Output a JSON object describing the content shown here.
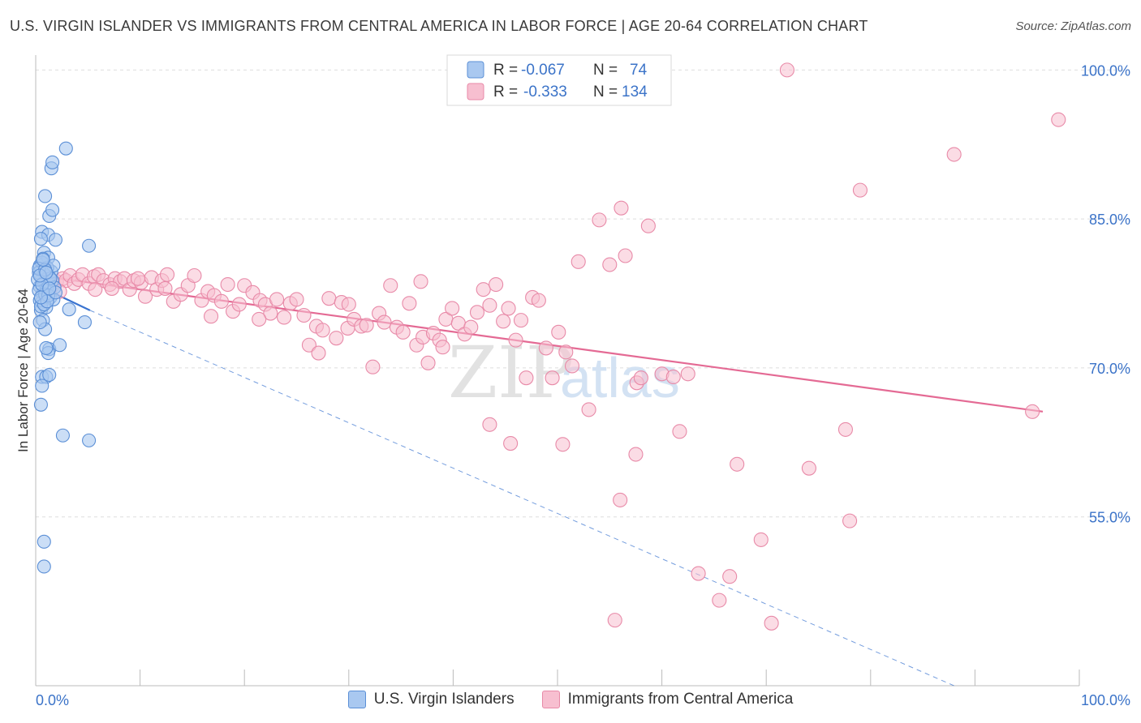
{
  "header": {
    "title": "U.S. VIRGIN ISLANDER VS IMMIGRANTS FROM CENTRAL AMERICA IN LABOR FORCE | AGE 20-64 CORRELATION CHART",
    "source": "Source: ZipAtlas.com"
  },
  "watermark": {
    "part1": "ZIP",
    "part2": "atlas"
  },
  "colors": {
    "blue_fill": "#a9c8f0",
    "blue_stroke": "#5b8fd6",
    "blue_line": "#3a74d0",
    "pink_fill": "#f7bfd0",
    "pink_stroke": "#e88aa8",
    "pink_line": "#e46a94",
    "accent_text": "#3b73c8",
    "grid": "#dedede"
  },
  "stats_legend": {
    "rows": [
      {
        "r_label": "R =",
        "r_value": "-0.067",
        "n_label": "N =",
        "n_value": "74"
      },
      {
        "r_label": "R =",
        "r_value": "-0.333",
        "n_label": "N =",
        "n_value": "134"
      }
    ]
  },
  "bottom_legend": {
    "blue_label": "U.S. Virgin Islanders",
    "pink_label": "Immigrants from Central America"
  },
  "chart_data": {
    "type": "scatter",
    "title": "U.S. VIRGIN ISLANDER VS IMMIGRANTS FROM CENTRAL AMERICA IN LABOR FORCE | AGE 20-64 CORRELATION CHART",
    "xlabel": "",
    "ylabel": "In Labor Force | Age 20-64",
    "xlim": [
      0,
      100
    ],
    "ylim": [
      38,
      101.5
    ],
    "x_tick_labels": {
      "left": "0.0%",
      "right": "100.0%"
    },
    "y_ticks": [
      {
        "value": 100,
        "label": "100.0%"
      },
      {
        "value": 85,
        "label": "85.0%"
      },
      {
        "value": 70,
        "label": "70.0%"
      },
      {
        "value": 55,
        "label": "55.0%"
      }
    ],
    "grid": true,
    "series": [
      {
        "name": "U.S. Virgin Islanders",
        "color": "blue",
        "trend": {
          "x0": 0.2,
          "y0": 78.3,
          "x1": 5.2,
          "y1": 75.8
        },
        "trend_extension": {
          "x0": 5.2,
          "y0": 75.8,
          "x1": 88.0,
          "y1": 38.0
        },
        "points": [
          [
            0.4,
            78.2
          ],
          [
            0.6,
            79.0
          ],
          [
            0.7,
            77.5
          ],
          [
            0.8,
            78.6
          ],
          [
            0.9,
            79.4
          ],
          [
            1.0,
            78.0
          ],
          [
            0.3,
            77.8
          ],
          [
            0.5,
            79.8
          ],
          [
            1.1,
            77.9
          ],
          [
            1.2,
            78.5
          ],
          [
            0.4,
            80.3
          ],
          [
            0.8,
            80.5
          ],
          [
            1.3,
            79.2
          ],
          [
            0.6,
            76.6
          ],
          [
            0.5,
            75.8
          ],
          [
            1.0,
            76.1
          ],
          [
            0.7,
            74.8
          ],
          [
            0.9,
            73.9
          ],
          [
            1.3,
            71.9
          ],
          [
            1.2,
            71.5
          ],
          [
            2.3,
            72.3
          ],
          [
            3.2,
            75.9
          ],
          [
            4.7,
            74.6
          ],
          [
            5.1,
            82.3
          ],
          [
            0.6,
            83.7
          ],
          [
            1.2,
            83.4
          ],
          [
            1.9,
            82.9
          ],
          [
            0.8,
            81.6
          ],
          [
            1.2,
            81.1
          ],
          [
            0.6,
            80.6
          ],
          [
            1.3,
            85.3
          ],
          [
            1.6,
            85.9
          ],
          [
            0.9,
            87.3
          ],
          [
            1.5,
            90.1
          ],
          [
            1.6,
            90.7
          ],
          [
            2.9,
            92.1
          ],
          [
            0.6,
            69.1
          ],
          [
            1.0,
            69.1
          ],
          [
            1.3,
            69.3
          ],
          [
            0.6,
            68.2
          ],
          [
            0.5,
            66.3
          ],
          [
            2.6,
            63.2
          ],
          [
            5.1,
            62.7
          ],
          [
            0.8,
            52.5
          ],
          [
            0.8,
            50.0
          ],
          [
            0.4,
            76.8
          ],
          [
            1.4,
            77.1
          ],
          [
            1.7,
            76.9
          ],
          [
            0.3,
            79.6
          ],
          [
            1.5,
            79.7
          ],
          [
            0.9,
            77.4
          ],
          [
            0.5,
            76.2
          ],
          [
            1.6,
            78.8
          ],
          [
            1.1,
            80.1
          ],
          [
            0.7,
            81.0
          ],
          [
            0.2,
            78.9
          ],
          [
            1.8,
            78.1
          ],
          [
            0.4,
            74.6
          ],
          [
            1.0,
            72.0
          ],
          [
            0.5,
            83.0
          ],
          [
            1.4,
            79.0
          ],
          [
            0.8,
            76.4
          ],
          [
            1.2,
            77.3
          ],
          [
            0.3,
            80.0
          ],
          [
            0.6,
            78.4
          ],
          [
            1.7,
            80.3
          ],
          [
            0.9,
            79.9
          ],
          [
            1.1,
            76.7
          ],
          [
            0.5,
            77.1
          ],
          [
            1.9,
            77.6
          ],
          [
            0.7,
            80.9
          ],
          [
            1.3,
            78.0
          ],
          [
            0.4,
            79.3
          ],
          [
            1.0,
            79.6
          ]
        ]
      },
      {
        "name": "Immigrants from Central America",
        "color": "pink",
        "trend": {
          "x0": 0.2,
          "y0": 79.3,
          "x1": 96.5,
          "y1": 65.6
        },
        "points": [
          [
            1.0,
            78.9
          ],
          [
            1.3,
            77.6
          ],
          [
            1.6,
            78.3
          ],
          [
            2.0,
            78.7
          ],
          [
            2.6,
            79.0
          ],
          [
            2.9,
            78.8
          ],
          [
            3.3,
            79.3
          ],
          [
            3.7,
            78.5
          ],
          [
            4.1,
            78.9
          ],
          [
            4.5,
            79.4
          ],
          [
            5.1,
            78.5
          ],
          [
            5.6,
            79.2
          ],
          [
            6.0,
            79.4
          ],
          [
            6.5,
            78.8
          ],
          [
            7.1,
            78.4
          ],
          [
            7.6,
            79.0
          ],
          [
            8.1,
            78.7
          ],
          [
            8.5,
            79.0
          ],
          [
            9.0,
            77.9
          ],
          [
            9.4,
            78.8
          ],
          [
            10.1,
            78.6
          ],
          [
            10.5,
            77.2
          ],
          [
            11.1,
            79.1
          ],
          [
            11.6,
            77.9
          ],
          [
            12.1,
            78.8
          ],
          [
            12.6,
            79.4
          ],
          [
            13.2,
            76.7
          ],
          [
            13.9,
            77.4
          ],
          [
            14.6,
            78.3
          ],
          [
            15.2,
            79.3
          ],
          [
            15.9,
            76.8
          ],
          [
            16.5,
            77.7
          ],
          [
            17.1,
            77.3
          ],
          [
            17.8,
            76.7
          ],
          [
            18.4,
            78.4
          ],
          [
            18.9,
            75.7
          ],
          [
            19.5,
            76.4
          ],
          [
            20.0,
            78.3
          ],
          [
            20.8,
            77.6
          ],
          [
            21.5,
            76.8
          ],
          [
            22.0,
            76.4
          ],
          [
            22.5,
            75.5
          ],
          [
            23.1,
            76.9
          ],
          [
            23.8,
            75.1
          ],
          [
            24.4,
            76.5
          ],
          [
            25.0,
            76.9
          ],
          [
            25.7,
            75.3
          ],
          [
            26.2,
            72.3
          ],
          [
            26.9,
            74.2
          ],
          [
            27.5,
            73.8
          ],
          [
            28.1,
            77.0
          ],
          [
            28.8,
            73.0
          ],
          [
            29.3,
            76.6
          ],
          [
            29.9,
            74.0
          ],
          [
            30.5,
            74.9
          ],
          [
            31.2,
            74.2
          ],
          [
            31.7,
            74.3
          ],
          [
            32.3,
            70.1
          ],
          [
            32.9,
            75.5
          ],
          [
            33.4,
            74.6
          ],
          [
            34.0,
            78.3
          ],
          [
            34.6,
            74.1
          ],
          [
            35.2,
            73.6
          ],
          [
            35.8,
            76.5
          ],
          [
            36.5,
            72.3
          ],
          [
            37.1,
            73.1
          ],
          [
            37.6,
            70.5
          ],
          [
            38.1,
            73.5
          ],
          [
            38.7,
            72.8
          ],
          [
            39.3,
            74.9
          ],
          [
            39.9,
            76.0
          ],
          [
            40.5,
            74.5
          ],
          [
            41.1,
            73.4
          ],
          [
            41.7,
            74.1
          ],
          [
            42.3,
            75.6
          ],
          [
            42.9,
            77.9
          ],
          [
            43.5,
            76.3
          ],
          [
            44.1,
            78.4
          ],
          [
            44.8,
            74.7
          ],
          [
            45.3,
            76.0
          ],
          [
            46.0,
            72.8
          ],
          [
            46.5,
            74.8
          ],
          [
            47.0,
            69.0
          ],
          [
            47.6,
            77.1
          ],
          [
            48.2,
            76.8
          ],
          [
            48.9,
            72.0
          ],
          [
            49.5,
            69.0
          ],
          [
            50.1,
            73.6
          ],
          [
            50.8,
            71.6
          ],
          [
            51.4,
            70.2
          ],
          [
            52.0,
            80.7
          ],
          [
            53.0,
            65.8
          ],
          [
            55.0,
            80.4
          ],
          [
            54.0,
            84.9
          ],
          [
            56.1,
            86.1
          ],
          [
            56.5,
            81.3
          ],
          [
            57.6,
            68.5
          ],
          [
            58.0,
            69.0
          ],
          [
            58.7,
            84.3
          ],
          [
            60.0,
            69.4
          ],
          [
            61.1,
            69.1
          ],
          [
            61.7,
            63.6
          ],
          [
            62.5,
            69.4
          ],
          [
            43.5,
            64.3
          ],
          [
            45.5,
            62.4
          ],
          [
            50.5,
            62.3
          ],
          [
            57.5,
            61.3
          ],
          [
            56.0,
            56.7
          ],
          [
            67.2,
            60.3
          ],
          [
            74.1,
            59.9
          ],
          [
            77.6,
            63.8
          ],
          [
            69.5,
            52.7
          ],
          [
            78.0,
            54.6
          ],
          [
            63.5,
            49.3
          ],
          [
            66.5,
            49.0
          ],
          [
            65.5,
            46.6
          ],
          [
            55.5,
            44.6
          ],
          [
            70.5,
            44.3
          ],
          [
            72.0,
            100.0
          ],
          [
            79.0,
            87.9
          ],
          [
            88.0,
            91.5
          ],
          [
            98.0,
            95.0
          ],
          [
            95.5,
            65.6
          ],
          [
            5.7,
            77.9
          ],
          [
            9.8,
            79.0
          ],
          [
            12.4,
            78.0
          ],
          [
            30.0,
            76.4
          ],
          [
            36.9,
            78.7
          ],
          [
            2.3,
            77.7
          ],
          [
            7.3,
            78.0
          ],
          [
            16.8,
            75.2
          ],
          [
            27.1,
            71.5
          ],
          [
            39.0,
            72.1
          ],
          [
            21.4,
            74.9
          ]
        ]
      }
    ]
  }
}
